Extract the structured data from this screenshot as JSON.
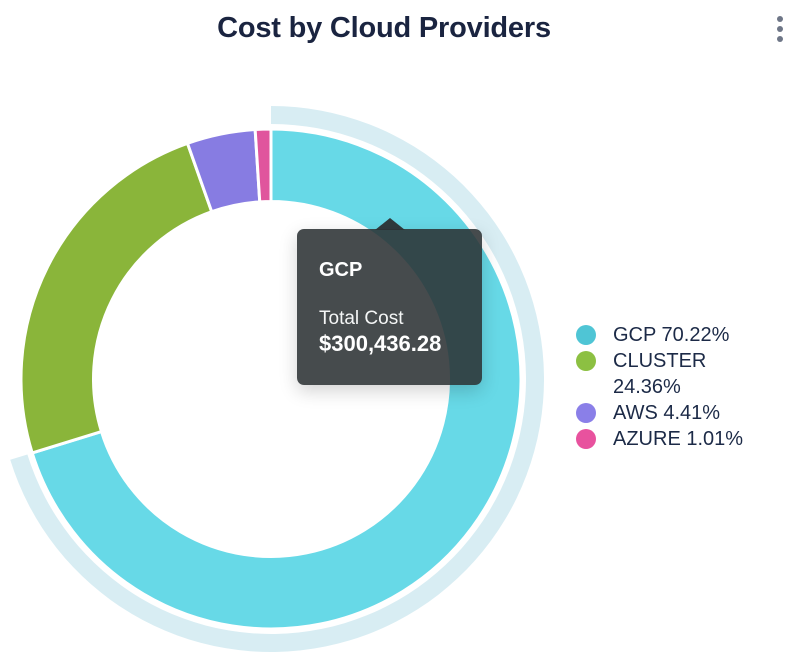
{
  "header": {
    "title": "Cost by Cloud Providers",
    "menu_icon": "kebab-menu-icon"
  },
  "chart_data": {
    "type": "pie",
    "subtype": "donut",
    "title": "Cost by Cloud Providers",
    "legend_position": "right",
    "unit": "percent",
    "segments": [
      {
        "label": "GCP",
        "percent": 70.22,
        "slice_color": "#67D9E7",
        "legend_color": "#4FC5D5",
        "hovered": true
      },
      {
        "label": "CLUSTER",
        "percent": 24.36,
        "slice_color": "#8AB53A",
        "legend_color": "#8CC042",
        "hovered": false
      },
      {
        "label": "AWS",
        "percent": 4.41,
        "slice_color": "#877CE2",
        "legend_color": "#8A7FE8",
        "hovered": false
      },
      {
        "label": "AZURE",
        "percent": 1.01,
        "slice_color": "#E0559D",
        "legend_color": "#E8529E",
        "hovered": false
      }
    ],
    "highlight_ring_color": "#D8EDF3",
    "tooltip": {
      "series": "GCP",
      "label": "Total Cost",
      "value": "$300,436.28"
    }
  },
  "tooltip": {
    "title": "GCP",
    "label": "Total Cost",
    "value": "$300,436.28"
  }
}
